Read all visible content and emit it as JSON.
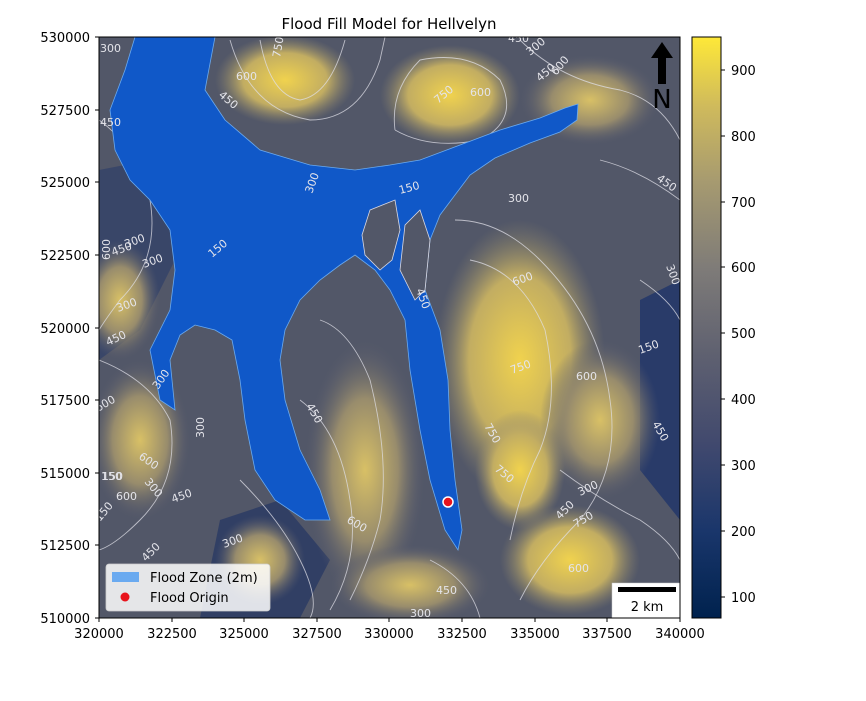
{
  "title": "Flood Fill Model for Hellvelyn",
  "north_label": "N",
  "scale_bar_label": "2 km",
  "legend": {
    "items": [
      {
        "label": "Flood Zone (2m)",
        "color": "#6aaaf0",
        "marker": "patch"
      },
      {
        "label": "Flood Origin",
        "color": "#e8141c",
        "marker": "dot"
      }
    ]
  },
  "map": {
    "x_range": [
      320000,
      340000
    ],
    "y_range": [
      510000,
      530000
    ],
    "x_ticks": [
      "320000",
      "322500",
      "325000",
      "327500",
      "330000",
      "332500",
      "335000",
      "337500",
      "340000"
    ],
    "y_ticks": [
      "530000",
      "527500",
      "525000",
      "522500",
      "520000",
      "517500",
      "515000",
      "512500",
      "510000"
    ],
    "flood_origin": {
      "x": 332000,
      "y": 514000
    },
    "contour_labels": [
      "300",
      "750",
      "450",
      "600",
      "450",
      "450",
      "150",
      "300",
      "600",
      "750",
      "450",
      "300",
      "600",
      "450",
      "150",
      "450",
      "300",
      "600",
      "300",
      "300",
      "600",
      "450",
      "300",
      "300",
      "450",
      "750",
      "600",
      "150",
      "450",
      "300",
      "600",
      "450",
      "300",
      "750",
      "600",
      "300",
      "750",
      "450",
      "150",
      "150",
      "600",
      "300",
      "450",
      "600",
      "450",
      "150",
      "750",
      "600",
      "300",
      "450",
      "300"
    ]
  },
  "colorbar": {
    "ticks": [
      "900",
      "800",
      "700",
      "600",
      "500",
      "400",
      "300",
      "200",
      "100"
    ],
    "range": [
      68,
      950
    ],
    "colormap": "cividis"
  },
  "colors": {
    "flood_blue": "#1058c8",
    "low_navy": "#0d2a5c",
    "high_yellow": "#ffe63e"
  }
}
